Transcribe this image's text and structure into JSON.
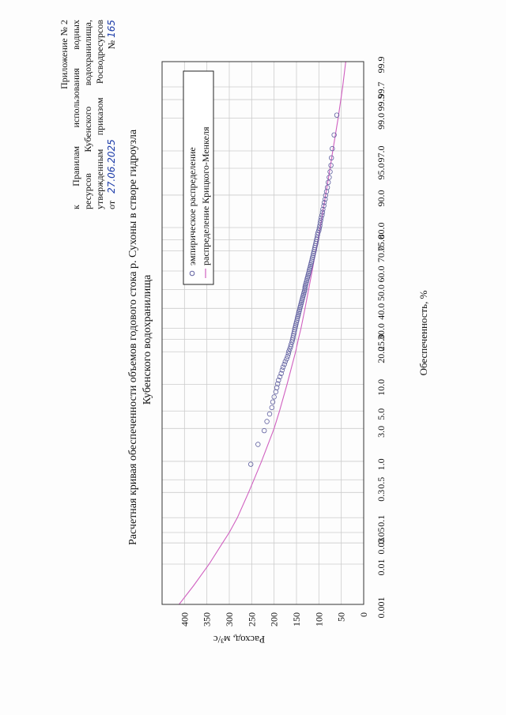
{
  "header": {
    "line1": "Приложение № 2",
    "line2": "к   Правилам   использования   водных",
    "line3": "ресурсов   Кубенского   водохранилища,",
    "line4": "утвержденным приказом Росводресурсов",
    "from_label": "от",
    "date_handwritten": "27.06.2025",
    "number_label": "№",
    "number_handwritten": "165"
  },
  "colors": {
    "curve": "#d060c0",
    "points": "#6060a0",
    "grid": "#cccccc",
    "frame": "#333333"
  },
  "chart_data": {
    "type": "line",
    "title": "Расчетная кривая обеспеченности объемов годового стока р. Сухоны в створе гидроузла Кубенского водохранилища",
    "title_line1": "Расчетная кривая обеспеченности объемов годового стока р. Сухоны в створе гидроузла",
    "title_line2": "Кубенского водохранилища",
    "xlabel": "Обеспеченность, %",
    "ylabel": "Расход, м³/с",
    "x_scale": "probability",
    "x_ticks": [
      "0.01",
      "0.03",
      "0.05",
      "0.1",
      "0.3",
      "0.5",
      "1.0",
      "3.0",
      "5.0",
      "10.0",
      "20.0",
      "25.0",
      "30.0",
      "40.0",
      "50.0",
      "60.0",
      "70.0",
      "75.0",
      "80.0",
      "90.0",
      "95.0",
      "97.0",
      "99.0",
      "99.5",
      "99.7",
      "99.9"
    ],
    "x_edge_label": "0.001",
    "y_ticks": [
      "0",
      "50",
      "100",
      "150",
      "200",
      "250",
      "300",
      "350",
      "400"
    ],
    "ylim": [
      0,
      450
    ],
    "grid": true,
    "legend_placement": "top-right",
    "series": [
      {
        "name": "эмпирическое распределение",
        "kind": "points",
        "x": [
          0.9,
          1.8,
          2.8,
          3.7,
          4.6,
          5.5,
          6.4,
          7.3,
          8.3,
          9.2,
          10.1,
          11.0,
          11.9,
          12.8,
          13.8,
          14.7,
          15.6,
          16.5,
          17.4,
          18.3,
          19.3,
          20.2,
          21.1,
          22.0,
          22.9,
          23.9,
          24.8,
          25.7,
          26.6,
          27.5,
          28.4,
          29.4,
          30.3,
          31.2,
          32.1,
          33.0,
          33.9,
          34.9,
          35.8,
          36.7,
          37.6,
          38.5,
          39.4,
          40.4,
          41.3,
          42.2,
          43.1,
          44.0,
          45.0,
          45.9,
          46.8,
          47.7,
          48.6,
          49.5,
          50.5,
          51.4,
          52.3,
          53.2,
          54.1,
          55.0,
          56.0,
          56.9,
          57.8,
          58.7,
          59.6,
          60.6,
          61.5,
          62.4,
          63.3,
          64.2,
          65.1,
          66.1,
          67.0,
          67.9,
          68.8,
          69.7,
          70.6,
          71.6,
          72.5,
          73.4,
          74.3,
          75.2,
          76.1,
          77.1,
          78.0,
          78.9,
          79.8,
          80.7,
          81.7,
          82.6,
          83.5,
          84.4,
          85.3,
          86.2,
          87.2,
          88.1,
          89.0,
          89.9,
          90.8,
          91.7,
          92.7,
          93.6,
          94.5,
          95.4,
          96.3,
          97.2,
          98.2,
          99.1
        ],
        "y": [
          252,
          236,
          222,
          216,
          210,
          205,
          203,
          200,
          196,
          194,
          192,
          190,
          187,
          184,
          182,
          180,
          177,
          175,
          172,
          170,
          168,
          167,
          165,
          163,
          162,
          160,
          159,
          158,
          157,
          156,
          155,
          154,
          153,
          152,
          151,
          150,
          149,
          148,
          147,
          146,
          145,
          144,
          143,
          142,
          141,
          140,
          139,
          138,
          137,
          136,
          135,
          134,
          133,
          132,
          131,
          131,
          130,
          129,
          128,
          127,
          126,
          125,
          124,
          123,
          122,
          121,
          120,
          119,
          118,
          117,
          116,
          115,
          114,
          113,
          112,
          111,
          110,
          109,
          108,
          107,
          106,
          105,
          104,
          103,
          102,
          100,
          99,
          98,
          97,
          96,
          95,
          93,
          92,
          91,
          89,
          88,
          86,
          85,
          83,
          81,
          79,
          77,
          75,
          73,
          72,
          70,
          66,
          60
        ]
      },
      {
        "name": "распределение Крицкого-Менкеля",
        "kind": "line",
        "x": [
          0.001,
          0.003,
          0.01,
          0.03,
          0.05,
          0.1,
          0.3,
          0.5,
          1.0,
          3.0,
          5.0,
          10.0,
          20.0,
          25.0,
          30.0,
          40.0,
          50.0,
          60.0,
          70.0,
          75.0,
          80.0,
          90.0,
          95.0,
          97.0,
          99.0,
          99.5,
          99.7,
          99.9
        ],
        "y": [
          412,
          380,
          345,
          315,
          300,
          282,
          257,
          245,
          228,
          200,
          188,
          171,
          152,
          146,
          140,
          131,
          123,
          115,
          107,
          102,
          97,
          85,
          75,
          69,
          57,
          51,
          47,
          40
        ]
      }
    ]
  }
}
